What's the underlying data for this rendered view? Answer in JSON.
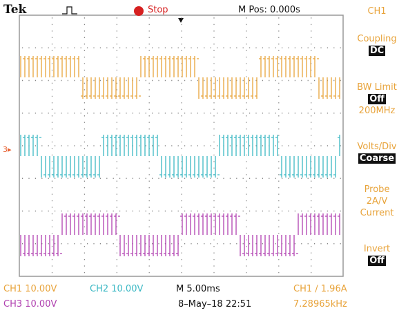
{
  "header": {
    "brand": "Tek",
    "state": "Stop",
    "position": "M Pos: 0.000s",
    "channel": "CH1"
  },
  "menu": {
    "coupling": {
      "label": "Coupling",
      "value": "DC"
    },
    "bw_limit": {
      "label": "BW Limit",
      "value": "Off",
      "extra": "200MHz"
    },
    "volts_div": {
      "label": "Volts/Div",
      "value": "Coarse"
    },
    "probe": {
      "label": "Probe",
      "lines": [
        "2A/V",
        "Current"
      ]
    },
    "invert": {
      "label": "Invert",
      "value": "Off"
    }
  },
  "marker": "3▸",
  "footer": {
    "ch1": "CH1 10.00V",
    "ch2": "CH2 10.00V",
    "timebase": "M 5.00ms",
    "trigger": "CH1 ∕ 1.96A",
    "ch3": "CH3 10.00V",
    "datetime": "8–May–18 22:51",
    "frequency": "7.28965kHz"
  }
}
